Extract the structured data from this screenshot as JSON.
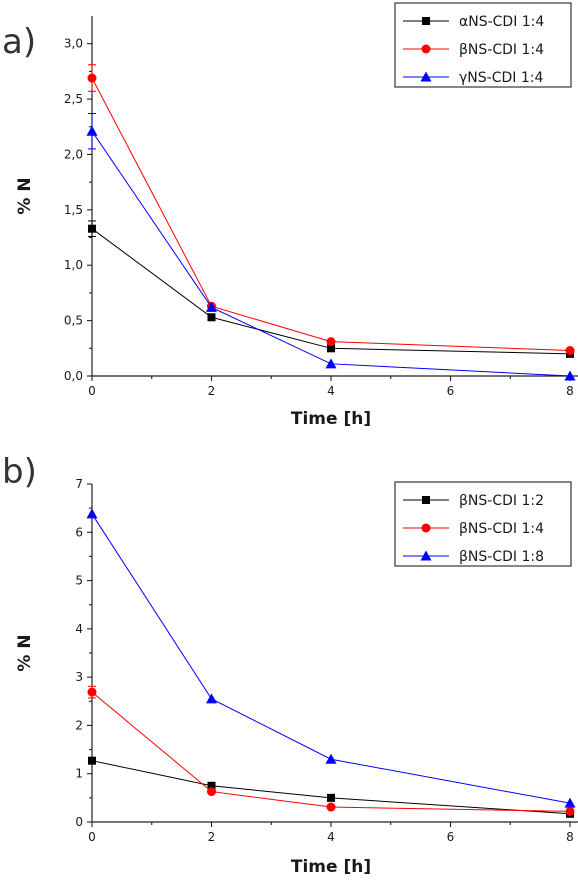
{
  "colors": {
    "series1": "#000000",
    "series2": "#ff0000",
    "series3": "#0000ff"
  },
  "chart_data": [
    {
      "panel_label": "a)",
      "type": "line",
      "xlabel": "Time [h]",
      "ylabel": "% N",
      "xlim": [
        0,
        8
      ],
      "ylim": [
        0,
        3.25
      ],
      "xticks": [
        0,
        2,
        4,
        6,
        8
      ],
      "xtick_labels": [
        "0",
        "2",
        "4",
        "6",
        "8"
      ],
      "yticks": [
        0,
        0.5,
        1.0,
        1.5,
        2.0,
        2.5,
        3.0
      ],
      "ytick_labels": [
        "0,0",
        "0,5",
        "1,0",
        "1,5",
        "2,0",
        "2,5",
        "3,0"
      ],
      "grid": false,
      "legend_position": "top-right",
      "x": [
        0,
        2,
        4,
        8
      ],
      "series": [
        {
          "name": "αNS-CDI 1:4",
          "marker": "square",
          "color": "#000000",
          "values": [
            1.33,
            0.53,
            0.25,
            0.2
          ],
          "errors": [
            0.07,
            0,
            0,
            0
          ]
        },
        {
          "name": "βNS-CDI 1:4",
          "marker": "circle",
          "color": "#ff0000",
          "values": [
            2.69,
            0.63,
            0.31,
            0.23
          ],
          "errors": [
            0.12,
            0,
            0,
            0
          ]
        },
        {
          "name": "γNS-CDI 1:4",
          "marker": "triangle",
          "color": "#0000ff",
          "values": [
            2.21,
            0.62,
            0.11,
            0.0
          ],
          "errors": [
            0.16,
            0,
            0,
            0
          ]
        }
      ]
    },
    {
      "panel_label": "b)",
      "type": "line",
      "xlabel": "Time [h]",
      "ylabel": "% N",
      "xlim": [
        0,
        8
      ],
      "ylim": [
        0,
        7
      ],
      "xticks": [
        0,
        2,
        4,
        6,
        8
      ],
      "xtick_labels": [
        "0",
        "2",
        "4",
        "6",
        "8"
      ],
      "yticks": [
        0,
        1,
        2,
        3,
        4,
        5,
        6,
        7
      ],
      "ytick_labels": [
        "0",
        "1",
        "2",
        "3",
        "4",
        "5",
        "6",
        "7"
      ],
      "grid": false,
      "legend_position": "top-right",
      "x": [
        0,
        2,
        4,
        8
      ],
      "series": [
        {
          "name": "βNS-CDI 1:2",
          "marker": "square",
          "color": "#000000",
          "values": [
            1.27,
            0.75,
            0.5,
            0.17
          ],
          "errors": [
            0,
            0,
            0,
            0
          ]
        },
        {
          "name": "βNS-CDI 1:4",
          "marker": "circle",
          "color": "#ff0000",
          "values": [
            2.69,
            0.63,
            0.31,
            0.22
          ],
          "errors": [
            0.12,
            0,
            0,
            0
          ]
        },
        {
          "name": "βNS-CDI 1:8",
          "marker": "triangle",
          "color": "#0000ff",
          "values": [
            6.38,
            2.55,
            1.3,
            0.39
          ],
          "errors": [
            0,
            0,
            0,
            0
          ]
        }
      ]
    }
  ]
}
